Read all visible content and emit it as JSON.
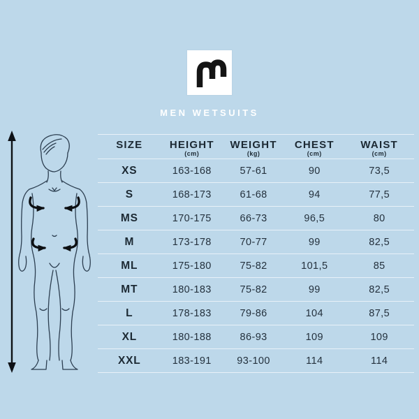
{
  "page": {
    "background_color": "#bdd8ea"
  },
  "brand": {
    "logo_icon": "mystic-m-logo",
    "logo_bg_color": "#ffffff",
    "logo_glyph_color": "#141414",
    "title": "MEN WETSUITS",
    "title_color": "#ffffff"
  },
  "figure": {
    "body_icon": "male-body-outline",
    "height_arrow_icon": "double-headed-vertical-arrow",
    "chest_arrows_icon": "chest-girth-arrows",
    "waist_arrows_icon": "waist-girth-arrows",
    "line_color": "#2c3e50",
    "arrow_color": "#0c0f12"
  },
  "chart_data": {
    "type": "table",
    "title": "MEN WETSUITS",
    "columns": [
      {
        "label": "SIZE",
        "unit": ""
      },
      {
        "label": "HEIGHT",
        "unit": "(cm)"
      },
      {
        "label": "WEIGHT",
        "unit": "(kg)"
      },
      {
        "label": "CHEST",
        "unit": "(cm)"
      },
      {
        "label": "WAIST",
        "unit": "(cm)"
      }
    ],
    "rows": [
      [
        "XS",
        "163-168",
        "57-61",
        "90",
        "73,5"
      ],
      [
        "S",
        "168-173",
        "61-68",
        "94",
        "77,5"
      ],
      [
        "MS",
        "170-175",
        "66-73",
        "96,5",
        "80"
      ],
      [
        "M",
        "173-178",
        "70-77",
        "99",
        "82,5"
      ],
      [
        "ML",
        "175-180",
        "75-82",
        "101,5",
        "85"
      ],
      [
        "MT",
        "180-183",
        "75-82",
        "99",
        "82,5"
      ],
      [
        "L",
        "178-183",
        "79-86",
        "104",
        "87,5"
      ],
      [
        "XL",
        "180-188",
        "86-93",
        "109",
        "109"
      ],
      [
        "XXL",
        "183-191",
        "93-100",
        "114",
        "114"
      ]
    ]
  }
}
